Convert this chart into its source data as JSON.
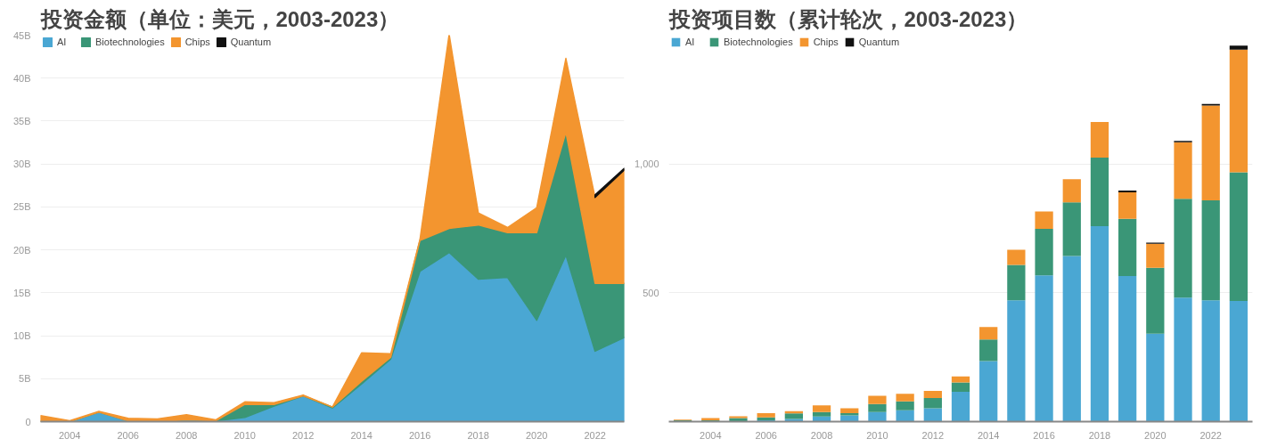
{
  "chart_data": [
    {
      "type": "area",
      "stacked": true,
      "title": "投资金额（单位：美元，2003-2023）",
      "legend": "top left",
      "grid": "y",
      "x": [
        2003,
        2004,
        2005,
        2006,
        2007,
        2008,
        2009,
        2010,
        2011,
        2012,
        2013,
        2014,
        2015,
        2016,
        2017,
        2018,
        2019,
        2020,
        2021,
        2022,
        2023
      ],
      "xlim": [
        2003,
        2023
      ],
      "xticks": [
        2004,
        2006,
        2008,
        2010,
        2012,
        2014,
        2016,
        2018,
        2020,
        2022
      ],
      "ylim": [
        0,
        45
      ],
      "yticks": [
        0,
        {
          "value": 5,
          "label": "5B"
        },
        {
          "value": 10,
          "label": "10B"
        },
        {
          "value": 15,
          "label": "15B"
        },
        {
          "value": 20,
          "label": "20B"
        },
        {
          "value": 25,
          "label": "25B"
        },
        {
          "value": 30,
          "label": "30B"
        },
        {
          "value": 35,
          "label": "35B"
        },
        {
          "value": 40,
          "label": "40B"
        },
        {
          "value": 45,
          "label": "45B"
        }
      ],
      "series": [
        {
          "name": "AI",
          "color": "#4aa7d3",
          "values": [
            0,
            0,
            1.1,
            0.1,
            0,
            0.2,
            0.1,
            0.5,
            1.8,
            3.0,
            1.6,
            4.4,
            7.3,
            17.5,
            19.7,
            16.6,
            16.8,
            11.8,
            19.4,
            8.2,
            9.8
          ]
        },
        {
          "name": "Biotechnologies",
          "color": "#3a9677",
          "values": [
            0,
            0,
            0,
            0,
            0,
            0,
            0,
            1.5,
            0.2,
            0,
            0.1,
            0.3,
            0.2,
            3.6,
            2.8,
            6.3,
            5.2,
            10.2,
            14.3,
            7.9,
            6.3
          ]
        },
        {
          "name": "Chips",
          "color": "#f3952f",
          "values": [
            0.7,
            0.1,
            0.1,
            0.3,
            0.3,
            0.6,
            0.1,
            0.3,
            0.2,
            0.1,
            0,
            3.3,
            0.4,
            0.1,
            22.6,
            1.4,
            0.6,
            2.9,
            8.6,
            10.0,
            13.2
          ]
        },
        {
          "name": "Quantum",
          "color": "#111111",
          "values": [
            null,
            null,
            null,
            null,
            null,
            null,
            null,
            null,
            null,
            null,
            null,
            null,
            null,
            null,
            null,
            null,
            null,
            null,
            null,
            0.3,
            0.2
          ]
        }
      ]
    },
    {
      "type": "bar",
      "stacked": true,
      "title": "投资项目数（累计轮次，2003-2023）",
      "legend": "top left",
      "grid": "y",
      "x": [
        2003,
        2004,
        2005,
        2006,
        2007,
        2008,
        2009,
        2010,
        2011,
        2012,
        2013,
        2014,
        2015,
        2016,
        2017,
        2018,
        2019,
        2020,
        2021,
        2022,
        2023
      ],
      "xlim": [
        2002.5,
        2023.5
      ],
      "xticks": [
        2004,
        2006,
        2008,
        2010,
        2012,
        2014,
        2016,
        2018,
        2020,
        2022
      ],
      "ylim": [
        0,
        1500
      ],
      "yticks": [
        500,
        {
          "value": 1000,
          "label": "1,000"
        }
      ],
      "series": [
        {
          "name": "AI",
          "color": "#4aa7d3",
          "values": [
            2,
            null,
            null,
            5,
            10,
            20,
            24,
            37,
            44,
            52,
            116,
            235,
            471,
            568,
            643,
            759,
            565,
            341,
            481,
            471,
            468
          ]
        },
        {
          "name": "Biotechnologies",
          "color": "#3a9677",
          "values": [
            3,
            5,
            14,
            11,
            22,
            17,
            9,
            31,
            35,
            40,
            36,
            84,
            137,
            180,
            208,
            266,
            222,
            256,
            384,
            388,
            500
          ]
        },
        {
          "name": "Chips",
          "color": "#f3952f",
          "values": [
            3,
            9,
            7,
            17,
            9,
            26,
            19,
            32,
            29,
            27,
            23,
            48,
            59,
            68,
            90,
            138,
            103,
            93,
            219,
            368,
            476
          ]
        },
        {
          "name": "Quantum",
          "color": "#111111",
          "values": [
            0,
            0,
            0,
            0,
            0,
            0,
            0,
            0,
            0,
            0,
            0,
            0,
            0,
            null,
            0,
            0,
            7,
            5,
            6,
            6,
            15
          ]
        }
      ]
    }
  ]
}
